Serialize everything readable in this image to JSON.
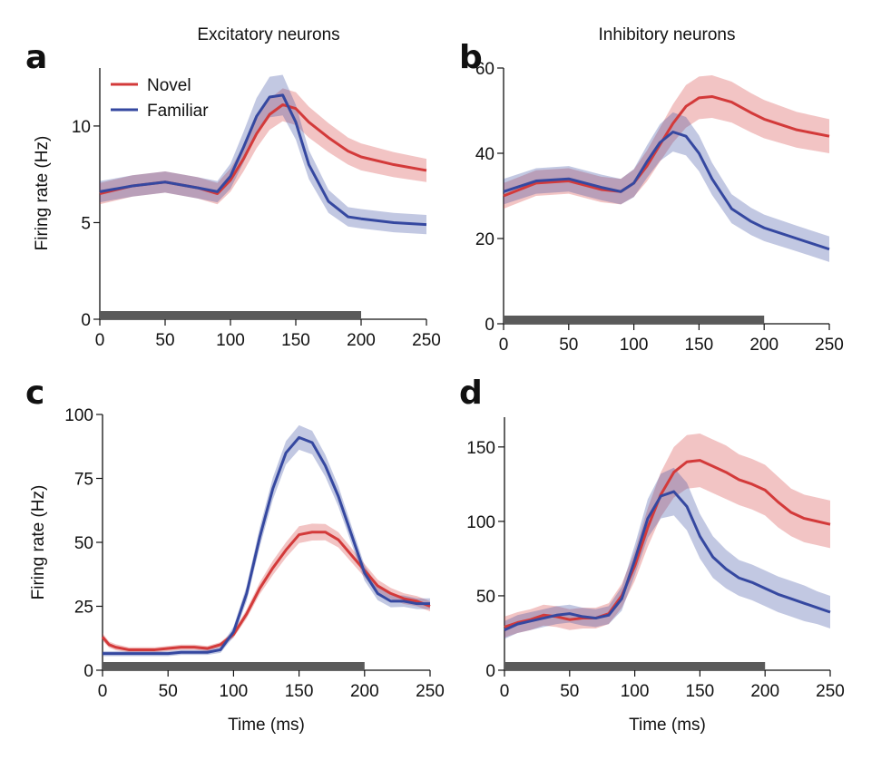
{
  "column_titles": [
    "Excitatory neurons",
    "Inhibitory neurons"
  ],
  "colors": {
    "novel": "#d33a3a",
    "familiar": "#3548a0",
    "stimulus_bar": "#5a5a5a"
  },
  "legend": {
    "novel": "Novel",
    "familiar": "Familiar"
  },
  "chart_data": [
    {
      "type": "line",
      "panel": "a",
      "column_title": "Excitatory neurons",
      "ylabel": "Firing rate (Hz)",
      "xlabel": "",
      "xlim": [
        0,
        250
      ],
      "ylim": [
        0,
        13
      ],
      "xticks": [
        0,
        50,
        100,
        150,
        200,
        250
      ],
      "yticks": [
        0,
        5,
        10
      ],
      "stimulus_bar": [
        0,
        200
      ],
      "legend_position": "top-left",
      "x": [
        0,
        25,
        50,
        75,
        90,
        100,
        110,
        120,
        130,
        140,
        150,
        160,
        175,
        190,
        200,
        225,
        250
      ],
      "series": [
        {
          "name": "Novel",
          "values": [
            6.5,
            6.9,
            7.1,
            6.8,
            6.5,
            7.2,
            8.3,
            9.6,
            10.6,
            11.1,
            10.9,
            10.2,
            9.4,
            8.7,
            8.4,
            8.0,
            7.7
          ],
          "err": [
            0.55,
            0.55,
            0.55,
            0.55,
            0.55,
            0.6,
            0.65,
            0.75,
            0.8,
            0.85,
            0.85,
            0.8,
            0.75,
            0.7,
            0.7,
            0.65,
            0.6
          ]
        },
        {
          "name": "Familiar",
          "values": [
            6.6,
            6.9,
            7.1,
            6.8,
            6.6,
            7.4,
            8.9,
            10.5,
            11.5,
            11.6,
            10.2,
            8.0,
            6.1,
            5.3,
            5.2,
            5.0,
            4.9
          ],
          "err": [
            0.55,
            0.55,
            0.55,
            0.55,
            0.55,
            0.65,
            0.8,
            0.95,
            1.05,
            1.05,
            0.9,
            0.75,
            0.6,
            0.5,
            0.5,
            0.5,
            0.5
          ]
        }
      ]
    },
    {
      "type": "line",
      "panel": "b",
      "column_title": "Inhibitory neurons",
      "ylabel": "",
      "xlabel": "",
      "xlim": [
        0,
        250
      ],
      "ylim": [
        0,
        60
      ],
      "xticks": [
        0,
        50,
        100,
        150,
        200,
        250
      ],
      "yticks": [
        0,
        20,
        40,
        60
      ],
      "stimulus_bar": [
        0,
        200
      ],
      "x": [
        0,
        25,
        50,
        75,
        90,
        100,
        110,
        120,
        130,
        140,
        150,
        160,
        175,
        190,
        200,
        225,
        250
      ],
      "series": [
        {
          "name": "Novel",
          "values": [
            30,
            33,
            33.5,
            31.5,
            31,
            33,
            37,
            42,
            47,
            51,
            53,
            53.3,
            52,
            49.5,
            48,
            45.5,
            44
          ],
          "err": [
            3,
            3,
            3,
            3,
            3,
            3.2,
            3.6,
            4,
            4.5,
            5,
            5,
            5,
            4.8,
            4.6,
            4.5,
            4.2,
            4
          ]
        },
        {
          "name": "Familiar",
          "values": [
            31,
            33.5,
            34,
            32,
            31,
            33,
            38,
            42.5,
            45,
            44,
            40,
            34,
            27,
            24,
            22.5,
            20,
            17.5
          ],
          "err": [
            3,
            3,
            3,
            3,
            3,
            3.3,
            3.8,
            4.3,
            4.6,
            4.5,
            4.2,
            3.8,
            3.4,
            3.2,
            3.1,
            3,
            3
          ]
        }
      ]
    },
    {
      "type": "line",
      "panel": "c",
      "ylabel": "Firing rate (Hz)",
      "xlabel": "Time (ms)",
      "xlim": [
        0,
        250
      ],
      "ylim": [
        0,
        100
      ],
      "xticks": [
        0,
        50,
        100,
        150,
        200,
        250
      ],
      "yticks": [
        0,
        25,
        50,
        75,
        100
      ],
      "stimulus_bar": [
        0,
        200
      ],
      "x": [
        0,
        5,
        10,
        20,
        30,
        40,
        50,
        60,
        70,
        80,
        90,
        100,
        110,
        120,
        130,
        140,
        150,
        160,
        170,
        180,
        190,
        200,
        210,
        220,
        230,
        240,
        250
      ],
      "series": [
        {
          "name": "Novel",
          "values": [
            13,
            10,
            9,
            8,
            8,
            8,
            8.5,
            9,
            9,
            8.5,
            10,
            14,
            22,
            32,
            40,
            47,
            53,
            54,
            54,
            51,
            45,
            39,
            33,
            30,
            28,
            27,
            25
          ],
          "err": [
            1.5,
            1.2,
            1.2,
            1,
            1,
            1,
            1,
            1,
            1,
            1,
            1,
            1.3,
            1.8,
            2.3,
            2.8,
            3,
            3.3,
            3.3,
            3.2,
            3,
            2.8,
            2.6,
            2.4,
            2.2,
            2.1,
            2,
            2
          ]
        },
        {
          "name": "Familiar",
          "values": [
            6.5,
            6.5,
            6.5,
            6.5,
            6.5,
            6.5,
            6.5,
            7,
            7,
            7,
            8,
            15,
            30,
            52,
            71,
            85,
            91,
            89,
            80,
            68,
            53,
            38,
            30,
            27,
            27,
            26,
            26
          ],
          "err": [
            1,
            1,
            1,
            1,
            1,
            1,
            1,
            1,
            1,
            1,
            1.2,
            2,
            3,
            3.8,
            4.3,
            4.6,
            4.8,
            4.6,
            4.3,
            4,
            3.5,
            3,
            2.6,
            2.4,
            2.2,
            2.1,
            2.1
          ]
        }
      ]
    },
    {
      "type": "line",
      "panel": "d",
      "ylabel": "",
      "xlabel": "Time (ms)",
      "xlim": [
        0,
        250
      ],
      "ylim": [
        0,
        170
      ],
      "xticks": [
        0,
        50,
        100,
        150,
        200,
        250
      ],
      "yticks": [
        0,
        50,
        100,
        150
      ],
      "stimulus_bar": [
        0,
        200
      ],
      "x": [
        0,
        10,
        20,
        30,
        40,
        50,
        60,
        70,
        80,
        90,
        100,
        110,
        120,
        130,
        140,
        150,
        160,
        170,
        180,
        190,
        200,
        210,
        220,
        230,
        240,
        250
      ],
      "series": [
        {
          "name": "Novel",
          "values": [
            29,
            32,
            34,
            37,
            36,
            34,
            35,
            35,
            38,
            50,
            70,
            96,
            118,
            133,
            140,
            141,
            137,
            133,
            128,
            125,
            121,
            113,
            106,
            102,
            100,
            98
          ],
          "err": [
            7,
            7,
            7,
            7,
            7,
            7,
            7,
            7,
            7,
            8,
            10,
            13,
            15,
            17,
            18,
            18,
            18,
            18,
            17,
            17,
            17,
            17,
            16,
            16,
            16,
            16
          ]
        },
        {
          "name": "Familiar",
          "values": [
            27,
            31,
            33,
            35,
            37,
            38,
            36,
            35,
            37,
            48,
            74,
            102,
            117,
            120,
            110,
            90,
            76,
            68,
            62,
            59,
            55,
            51,
            48,
            45,
            42,
            39
          ],
          "err": [
            6,
            6,
            6,
            6,
            6,
            6,
            6,
            6,
            6,
            8,
            10,
            13,
            15,
            16,
            16,
            15,
            14,
            13,
            12,
            12,
            12,
            12,
            12,
            12,
            11,
            11
          ]
        }
      ]
    }
  ]
}
